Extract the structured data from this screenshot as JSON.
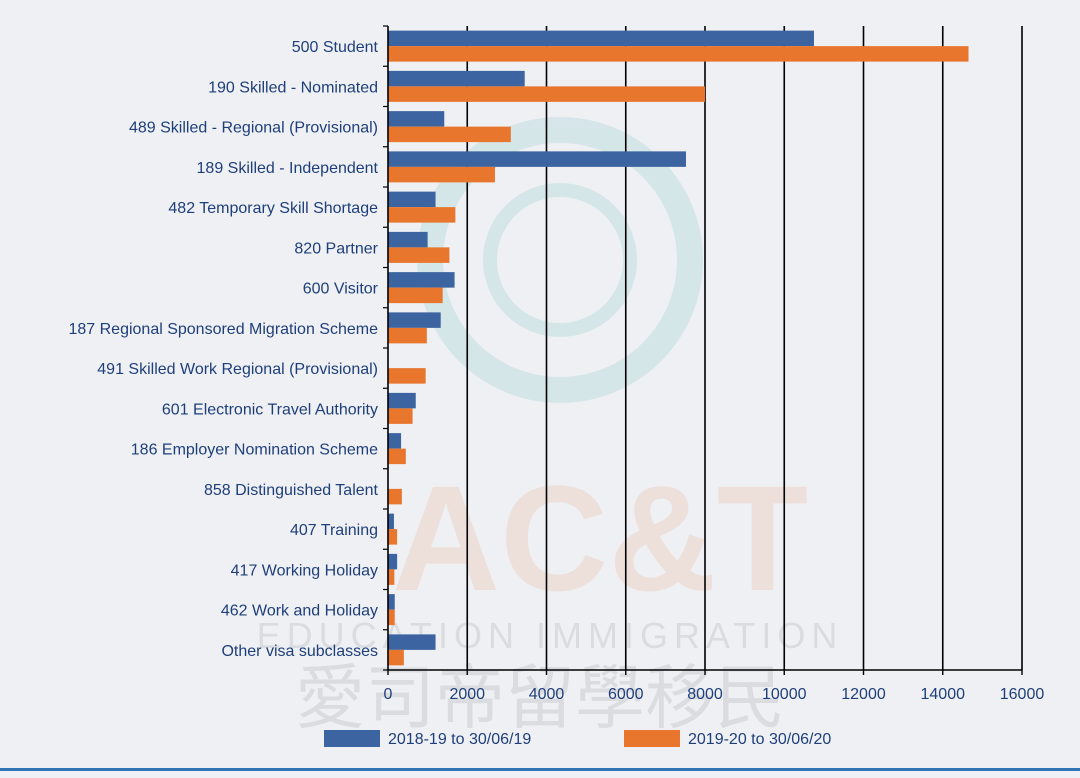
{
  "chart_data": {
    "type": "bar",
    "orientation": "horizontal",
    "categories": [
      "500 Student",
      "190 Skilled - Nominated",
      "489 Skilled - Regional (Provisional)",
      "189 Skilled - Independent",
      "482 Temporary Skill Shortage",
      "820 Partner",
      "600 Visitor",
      "187 Regional Sponsored Migration Scheme",
      "491 Skilled Work Regional (Provisional)",
      "601 Electronic Travel Authority",
      "186 Employer Nomination Scheme",
      "858 Distinguished Talent",
      "407 Training",
      "417 Working Holiday",
      "462 Work and Holiday",
      "Other visa subclasses"
    ],
    "series": [
      {
        "name": "2018-19 to 30/06/19",
        "color": "#3c64a0",
        "values": [
          10750,
          3450,
          1420,
          7520,
          1200,
          1000,
          1680,
          1330,
          0,
          700,
          330,
          0,
          150,
          230,
          170,
          1200
        ]
      },
      {
        "name": "2019-20 to 30/06/20",
        "color": "#e8762d",
        "values": [
          14650,
          8000,
          3100,
          2700,
          1700,
          1550,
          1380,
          980,
          950,
          620,
          450,
          350,
          230,
          160,
          170,
          400
        ]
      }
    ],
    "xlim": [
      0,
      16000
    ],
    "xticks": [
      0,
      2000,
      4000,
      6000,
      8000,
      10000,
      12000,
      14000,
      16000
    ],
    "grid": "vertical",
    "legend_position": "bottom"
  },
  "watermark": {
    "text": "AC&T EDUCATION IMMIGRATION 愛司帝留學移民"
  }
}
